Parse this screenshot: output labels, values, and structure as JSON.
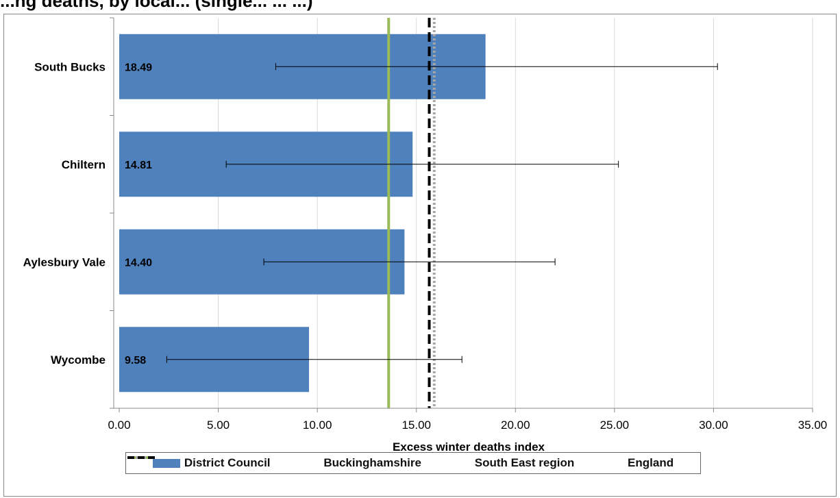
{
  "title": "...ng deaths, by local... (single... ... ...)",
  "colors": {
    "bar": "#4f81bd",
    "bucks": "#9bbb59",
    "southeast": "#a6a6a6",
    "england": "#000000",
    "grid": "#d9d9d9"
  },
  "chart_data": {
    "type": "bar",
    "orientation": "horizontal",
    "categories": [
      "South Bucks",
      "Chiltern",
      "Aylesbury Vale",
      "Wycombe"
    ],
    "values": [
      18.49,
      14.81,
      14.4,
      9.58
    ],
    "value_labels": [
      "18.49",
      "14.81",
      "14.40",
      "9.58"
    ],
    "error_bars": [
      {
        "low": 7.9,
        "high": 30.2
      },
      {
        "low": 5.4,
        "high": 25.2
      },
      {
        "low": 7.3,
        "high": 22.0
      },
      {
        "low": 2.4,
        "high": 17.3
      }
    ],
    "reference_lines": [
      {
        "name": "Buckinghamshire",
        "value": 13.6,
        "style": "solid",
        "color": "#9bbb59"
      },
      {
        "name": "South East region",
        "value": 15.9,
        "style": "dotted",
        "color": "#a6a6a6"
      },
      {
        "name": "England",
        "value": 15.65,
        "style": "dashed",
        "color": "#000000"
      }
    ],
    "xlabel": "Excess winter deaths index",
    "ylabel": "",
    "xlim": [
      0,
      35
    ],
    "xticks": [
      0,
      5,
      10,
      15,
      20,
      25,
      30,
      35
    ],
    "xtick_labels": [
      "0.00",
      "5.00",
      "10.00",
      "15.00",
      "20.00",
      "25.00",
      "30.00",
      "35.00"
    ],
    "grid": true,
    "legend_position": "bottom"
  },
  "legend": {
    "items": [
      {
        "label": "District Council",
        "swatch": "bar"
      },
      {
        "label": "Buckinghamshire",
        "swatch": "solid"
      },
      {
        "label": "South East region",
        "swatch": "dotted"
      },
      {
        "label": "England",
        "swatch": "dashed"
      }
    ]
  }
}
